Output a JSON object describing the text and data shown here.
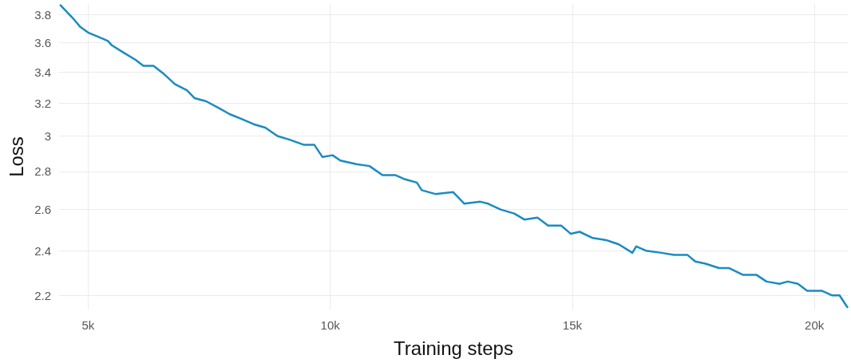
{
  "chart_data": {
    "type": "line",
    "xlabel": "Training steps",
    "ylabel": "Loss",
    "log": "y",
    "grid": true,
    "marker": "none",
    "line_style": "solid",
    "xlim": [
      4400,
      20690
    ],
    "ylim": [
      2.14,
      3.88
    ],
    "xticks": [
      {
        "value": 5000,
        "label": "5k"
      },
      {
        "value": 10000,
        "label": "10k"
      },
      {
        "value": 15000,
        "label": "15k"
      },
      {
        "value": 20000,
        "label": "20k"
      }
    ],
    "yticks": [
      2.2,
      2.4,
      2.6,
      2.8,
      3,
      3.2,
      3.4,
      3.6,
      3.8
    ],
    "series": [
      {
        "color": "#1a8bc2",
        "x": [
          4430,
          4670,
          4840,
          5000,
          5210,
          5410,
          5490,
          5730,
          5980,
          6140,
          6350,
          6550,
          6790,
          7040,
          7200,
          7440,
          7690,
          7930,
          8180,
          8420,
          8660,
          8910,
          9150,
          9450,
          9670,
          9840,
          10050,
          10210,
          10540,
          10810,
          11080,
          11350,
          11520,
          11790,
          11890,
          12170,
          12540,
          12770,
          13100,
          13260,
          13520,
          13800,
          14010,
          14280,
          14500,
          14770,
          14970,
          15150,
          15420,
          15700,
          15960,
          16240,
          16320,
          16520,
          16840,
          17100,
          17380,
          17540,
          17750,
          18030,
          18240,
          18520,
          18800,
          19010,
          19280,
          19450,
          19660,
          19850,
          20150,
          20360,
          20520,
          20680
        ],
        "values": [
          3.87,
          3.78,
          3.71,
          3.67,
          3.64,
          3.61,
          3.58,
          3.53,
          3.48,
          3.44,
          3.44,
          3.39,
          3.32,
          3.28,
          3.23,
          3.21,
          3.17,
          3.13,
          3.1,
          3.07,
          3.05,
          3.0,
          2.98,
          2.95,
          2.95,
          2.88,
          2.89,
          2.86,
          2.84,
          2.83,
          2.78,
          2.78,
          2.76,
          2.74,
          2.7,
          2.68,
          2.69,
          2.63,
          2.64,
          2.63,
          2.6,
          2.58,
          2.55,
          2.56,
          2.52,
          2.52,
          2.48,
          2.49,
          2.46,
          2.45,
          2.43,
          2.39,
          2.42,
          2.4,
          2.39,
          2.38,
          2.38,
          2.35,
          2.34,
          2.32,
          2.32,
          2.29,
          2.29,
          2.26,
          2.25,
          2.26,
          2.25,
          2.22,
          2.22,
          2.2,
          2.2,
          2.15
        ]
      }
    ]
  }
}
